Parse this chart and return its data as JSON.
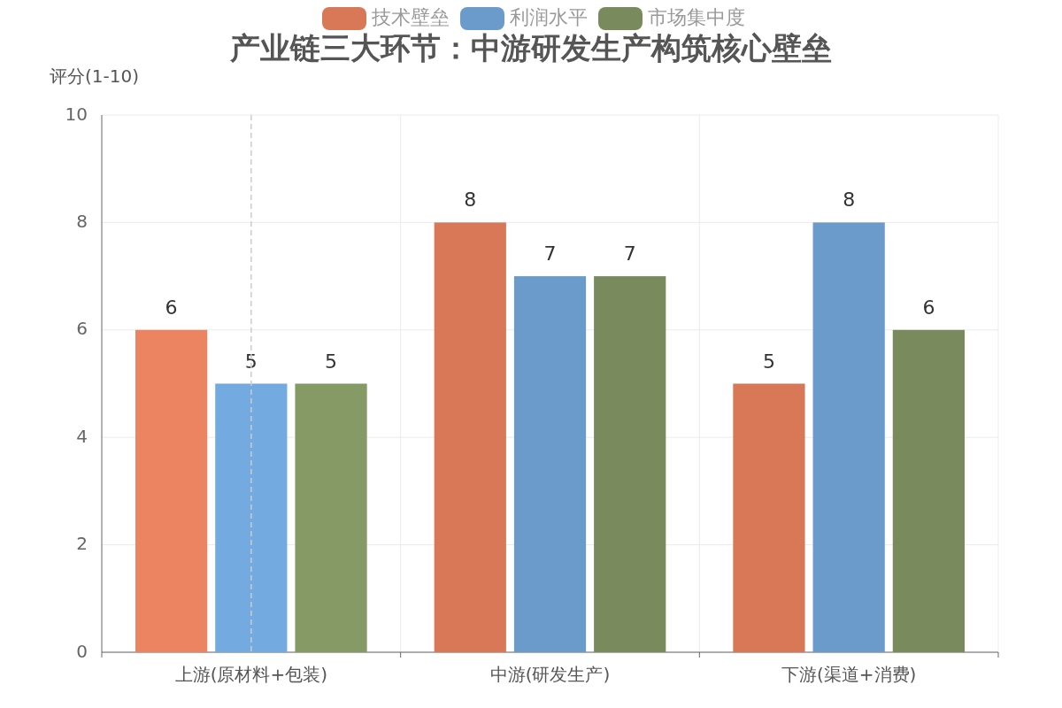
{
  "chart_data": {
    "type": "bar",
    "title": "产业链三大环节：中游研发生产构筑核心壁垒",
    "ylabel": "评分(1-10)",
    "categories": [
      "上游(原材料+包装)",
      "中游(研发生产)",
      "下游(渠道+消费)"
    ],
    "series": [
      {
        "name": "技术壁垒",
        "color": "#d97857",
        "colors": [
          "#ec8462",
          "#d97857",
          "#d97857"
        ],
        "values": [
          6,
          8,
          5
        ]
      },
      {
        "name": "利润水平",
        "color": "#6b9bcb",
        "colors": [
          "#73aadf",
          "#6b9bcb",
          "#6b9bcb"
        ],
        "values": [
          5,
          7,
          8
        ]
      },
      {
        "name": "市场集中度",
        "color": "#798a5c",
        "colors": [
          "#869a66",
          "#798a5c",
          "#798a5c"
        ],
        "values": [
          5,
          7,
          6
        ]
      }
    ],
    "ylim": [
      0,
      10
    ],
    "yticks": [
      0,
      2,
      4,
      6,
      8,
      10
    ],
    "grid": true,
    "legend": "top",
    "data_labels": true,
    "ref_lines": [
      {
        "axis": "x",
        "value": "上游(原材料+包装)",
        "color": "#cccccc",
        "line_style": "dashed"
      }
    ]
  }
}
